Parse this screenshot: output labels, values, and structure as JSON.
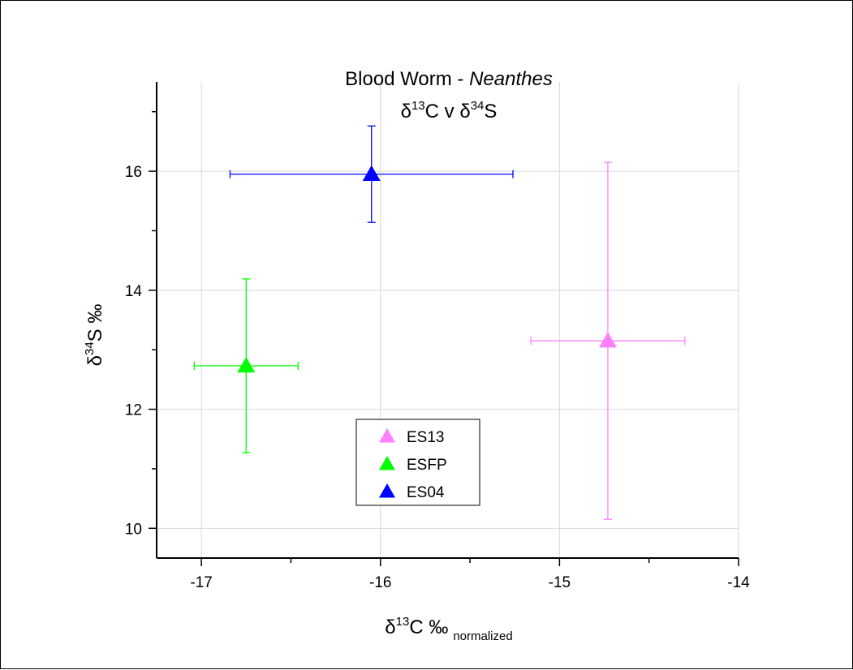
{
  "chart_data": {
    "type": "scatter",
    "title": "Blood Worm - Neanthes",
    "title_parts": {
      "main": "Blood Worm - ",
      "italic": "Neanthes"
    },
    "subtitle": "δ13C v δ34S",
    "subtitle_parts": {
      "d1": "δ",
      "sup1": "13",
      "mid": "C v δ",
      "sup2": "34",
      "end": "S"
    },
    "xlabel": "δ13C ‰ normalized",
    "xlabel_parts": {
      "delta": "δ",
      "sup": "13",
      "main": "C ‰",
      "sub": "normalized"
    },
    "ylabel": "δ34S ‰",
    "ylabel_parts": {
      "delta": "δ",
      "sup": "34",
      "main": "S ‰"
    },
    "xlim": [
      -17.25,
      -14
    ],
    "ylim": [
      9.5,
      17.5
    ],
    "x_ticks": [
      -17,
      -16,
      -15,
      -14
    ],
    "x_tick_labels": [
      "-17",
      "-16",
      "-15",
      "-14"
    ],
    "y_ticks": [
      10,
      12,
      14,
      16
    ],
    "y_tick_labels": [
      "10",
      "12",
      "14",
      "16"
    ],
    "grid": true,
    "legend_position": "bottom-center",
    "marker": "triangle-up",
    "series": [
      {
        "name": "ES13",
        "color": "#ff80ff",
        "x": -14.73,
        "y": 13.15,
        "xerr": 0.43,
        "yerr": 3.0
      },
      {
        "name": "ESFP",
        "color": "#00ff00",
        "x": -16.75,
        "y": 12.73,
        "xerr": 0.29,
        "yerr": 1.46
      },
      {
        "name": "ES04",
        "color": "#0000ff",
        "x": -16.05,
        "y": 15.95,
        "xerr": 0.79,
        "yerr": 0.81
      }
    ]
  }
}
